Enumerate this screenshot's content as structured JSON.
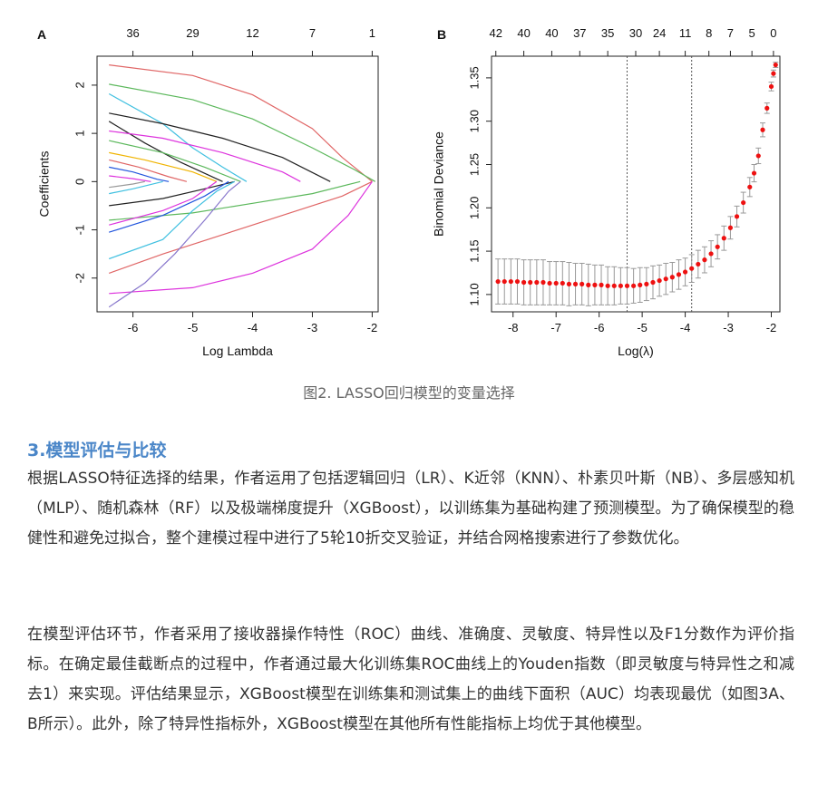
{
  "caption": "图2. LASSO回归模型的变量选择",
  "section_title": "3.模型评估与比较",
  "paragraphs": [
    "根据LASSO特征选择的结果，作者运用了包括逻辑回归（LR）、K近邻（KNN）、朴素贝叶斯（NB）、多层感知机（MLP）、随机森林（RF）以及极端梯度提升（XGBoost），以训练集为基础构建了预测模型。为了确保模型的稳健性和避免过拟合，整个建模过程中进行了5轮10折交叉验证，并结合网格搜索进行了参数优化。",
    "在模型评估环节，作者采用了接收器操作特性（ROC）曲线、准确度、灵敏度、特异性以及F1分数作为评价指标。在确定最佳截断点的过程中，作者通过最大化训练集ROC曲线上的Youden指数（即灵敏度与特异性之和减去1）来实现。评估结果显示，XGBoost模型在训练集和测试集上的曲线下面积（AUC）均表现最优（如图3A、B所示）。此外，除了特异性指标外，XGBoost模型在其他所有性能指标上均优于其他模型。"
  ],
  "chart_data": [
    {
      "panel": "A",
      "type": "line",
      "xlabel": "Log Lambda",
      "ylabel": "Coefficients",
      "xlim": [
        -6.6,
        -1.9
      ],
      "ylim": [
        -2.7,
        2.6
      ],
      "x_ticks": [
        -6,
        -5,
        -4,
        -3,
        -2
      ],
      "y_ticks": [
        -2,
        -1,
        0,
        1,
        2
      ],
      "top_axis_ticks": [
        {
          "x": -6,
          "label": "36"
        },
        {
          "x": -5,
          "label": "29"
        },
        {
          "x": -4,
          "label": "12"
        },
        {
          "x": -3,
          "label": "7"
        },
        {
          "x": -2,
          "label": "1"
        }
      ],
      "series": [
        {
          "color": "#e06666",
          "values": [
            [
              -6.4,
              2.42
            ],
            [
              -5.0,
              2.2
            ],
            [
              -4.0,
              1.8
            ],
            [
              -3.0,
              1.1
            ],
            [
              -2.5,
              0.5
            ],
            [
              -2.0,
              0
            ]
          ]
        },
        {
          "color": "#5cb85c",
          "values": [
            [
              -6.4,
              2.02
            ],
            [
              -5.0,
              1.7
            ],
            [
              -4.0,
              1.3
            ],
            [
              -3.0,
              0.7
            ],
            [
              -2.3,
              0.25
            ],
            [
              -1.95,
              0
            ]
          ]
        },
        {
          "color": "#40c0e0",
          "values": [
            [
              -6.4,
              1.82
            ],
            [
              -5.5,
              1.2
            ],
            [
              -5.0,
              0.7
            ],
            [
              -4.5,
              0.3
            ],
            [
              -4.1,
              0
            ]
          ]
        },
        {
          "color": "#222222",
          "values": [
            [
              -6.4,
              1.42
            ],
            [
              -5.5,
              1.2
            ],
            [
              -4.5,
              0.9
            ],
            [
              -3.5,
              0.5
            ],
            [
              -2.7,
              0
            ]
          ]
        },
        {
          "color": "#222222",
          "values": [
            [
              -6.4,
              1.25
            ],
            [
              -5.8,
              0.8
            ],
            [
              -5.2,
              0.4
            ],
            [
              -4.5,
              0
            ]
          ]
        },
        {
          "color": "#dd33dd",
          "values": [
            [
              -6.4,
              1.05
            ],
            [
              -5.5,
              0.9
            ],
            [
              -4.5,
              0.6
            ],
            [
              -3.5,
              0.2
            ],
            [
              -3.2,
              0
            ]
          ]
        },
        {
          "color": "#5cb85c",
          "values": [
            [
              -6.4,
              0.85
            ],
            [
              -5.5,
              0.6
            ],
            [
              -4.8,
              0.3
            ],
            [
              -4.2,
              0
            ]
          ]
        },
        {
          "color": "#f0b400",
          "values": [
            [
              -6.4,
              0.6
            ],
            [
              -5.8,
              0.45
            ],
            [
              -5.0,
              0.2
            ],
            [
              -4.6,
              0
            ]
          ]
        },
        {
          "color": "#e06666",
          "values": [
            [
              -6.4,
              0.45
            ],
            [
              -5.9,
              0.3
            ],
            [
              -5.4,
              0.1
            ],
            [
              -5.1,
              0
            ]
          ]
        },
        {
          "color": "#2255dd",
          "values": [
            [
              -6.4,
              0.3
            ],
            [
              -6.0,
              0.2
            ],
            [
              -5.6,
              0.05
            ],
            [
              -5.4,
              0
            ]
          ]
        },
        {
          "color": "#dd33dd",
          "values": [
            [
              -6.4,
              0.12
            ],
            [
              -6.0,
              0.06
            ],
            [
              -5.7,
              0
            ]
          ]
        },
        {
          "color": "#999999",
          "values": [
            [
              -6.4,
              -0.12
            ],
            [
              -6.0,
              -0.05
            ],
            [
              -5.8,
              0
            ]
          ]
        },
        {
          "color": "#40c0e0",
          "values": [
            [
              -6.4,
              -0.25
            ],
            [
              -6.0,
              -0.15
            ],
            [
              -5.5,
              0
            ]
          ]
        },
        {
          "color": "#222222",
          "values": [
            [
              -6.4,
              -0.5
            ],
            [
              -5.5,
              -0.35
            ],
            [
              -4.8,
              -0.15
            ],
            [
              -4.3,
              0
            ]
          ]
        },
        {
          "color": "#5cb85c",
          "values": [
            [
              -6.4,
              -0.8
            ],
            [
              -5.0,
              -0.65
            ],
            [
              -4.0,
              -0.45
            ],
            [
              -3.0,
              -0.25
            ],
            [
              -2.2,
              0
            ]
          ]
        },
        {
          "color": "#dd33dd",
          "values": [
            [
              -6.4,
              -0.9
            ],
            [
              -5.5,
              -0.6
            ],
            [
              -5.0,
              -0.35
            ],
            [
              -4.6,
              0
            ]
          ]
        },
        {
          "color": "#2255dd",
          "values": [
            [
              -6.4,
              -1.05
            ],
            [
              -5.5,
              -0.7
            ],
            [
              -4.8,
              -0.3
            ],
            [
              -4.4,
              0
            ]
          ]
        },
        {
          "color": "#40c0e0",
          "values": [
            [
              -6.4,
              -1.6
            ],
            [
              -5.5,
              -1.2
            ],
            [
              -5.0,
              -0.6
            ],
            [
              -4.6,
              -0.2
            ],
            [
              -4.3,
              0
            ]
          ]
        },
        {
          "color": "#e06666",
          "values": [
            [
              -6.4,
              -1.9
            ],
            [
              -5.5,
              -1.5
            ],
            [
              -4.5,
              -1.1
            ],
            [
              -3.5,
              -0.7
            ],
            [
              -2.5,
              -0.3
            ],
            [
              -2.0,
              0
            ]
          ]
        },
        {
          "color": "#dd33dd",
          "values": [
            [
              -6.4,
              -2.32
            ],
            [
              -5.0,
              -2.2
            ],
            [
              -4.0,
              -1.9
            ],
            [
              -3.0,
              -1.4
            ],
            [
              -2.4,
              -0.7
            ],
            [
              -2.0,
              0
            ]
          ]
        },
        {
          "color": "#8877cc",
          "values": [
            [
              -6.4,
              -2.6
            ],
            [
              -5.8,
              -2.1
            ],
            [
              -5.3,
              -1.5
            ],
            [
              -4.8,
              -0.8
            ],
            [
              -4.4,
              -0.2
            ],
            [
              -4.2,
              0
            ]
          ]
        }
      ]
    },
    {
      "panel": "B",
      "type": "scatter",
      "xlabel": "Log(λ)",
      "ylabel": "Binomial Deviance",
      "xlim": [
        -8.5,
        -1.8
      ],
      "ylim": [
        1.08,
        1.375
      ],
      "x_ticks": [
        -8,
        -7,
        -6,
        -5,
        -4,
        -3,
        -2
      ],
      "y_ticks": [
        1.1,
        1.15,
        1.2,
        1.25,
        1.3,
        1.35
      ],
      "y_tick_labels": [
        "1.10",
        "1.15",
        "1.20",
        "1.25",
        "1.30",
        "1.35"
      ],
      "top_axis_ticks": [
        {
          "x": -8.4,
          "label": "42"
        },
        {
          "x": -7.75,
          "label": "40"
        },
        {
          "x": -7.1,
          "label": "40"
        },
        {
          "x": -6.45,
          "label": "37"
        },
        {
          "x": -5.8,
          "label": "35"
        },
        {
          "x": -5.15,
          "label": "30"
        },
        {
          "x": -4.6,
          "label": "24"
        },
        {
          "x": -4.0,
          "label": "11"
        },
        {
          "x": -3.45,
          "label": "8"
        },
        {
          "x": -2.95,
          "label": "7"
        },
        {
          "x": -2.45,
          "label": "5"
        },
        {
          "x": -1.95,
          "label": "0"
        }
      ],
      "lambda_min": -5.35,
      "lambda_1se": -3.85,
      "points": [
        [
          -8.35,
          1.115,
          0.026
        ],
        [
          -8.2,
          1.115,
          0.026
        ],
        [
          -8.05,
          1.115,
          0.026
        ],
        [
          -7.9,
          1.115,
          0.026
        ],
        [
          -7.75,
          1.114,
          0.026
        ],
        [
          -7.6,
          1.114,
          0.026
        ],
        [
          -7.45,
          1.114,
          0.026
        ],
        [
          -7.3,
          1.114,
          0.026
        ],
        [
          -7.15,
          1.113,
          0.025
        ],
        [
          -7.0,
          1.113,
          0.025
        ],
        [
          -6.85,
          1.113,
          0.025
        ],
        [
          -6.7,
          1.112,
          0.025
        ],
        [
          -6.55,
          1.112,
          0.024
        ],
        [
          -6.4,
          1.112,
          0.024
        ],
        [
          -6.25,
          1.111,
          0.024
        ],
        [
          -6.1,
          1.111,
          0.023
        ],
        [
          -5.95,
          1.111,
          0.023
        ],
        [
          -5.8,
          1.11,
          0.022
        ],
        [
          -5.65,
          1.11,
          0.022
        ],
        [
          -5.5,
          1.11,
          0.021
        ],
        [
          -5.35,
          1.11,
          0.021
        ],
        [
          -5.2,
          1.11,
          0.02
        ],
        [
          -5.05,
          1.111,
          0.02
        ],
        [
          -4.9,
          1.112,
          0.019
        ],
        [
          -4.75,
          1.114,
          0.019
        ],
        [
          -4.6,
          1.116,
          0.018
        ],
        [
          -4.45,
          1.118,
          0.018
        ],
        [
          -4.3,
          1.12,
          0.017
        ],
        [
          -4.15,
          1.123,
          0.017
        ],
        [
          -4.0,
          1.126,
          0.016
        ],
        [
          -3.85,
          1.13,
          0.016
        ],
        [
          -3.7,
          1.135,
          0.016
        ],
        [
          -3.55,
          1.14,
          0.015
        ],
        [
          -3.4,
          1.147,
          0.015
        ],
        [
          -3.25,
          1.155,
          0.014
        ],
        [
          -3.1,
          1.165,
          0.014
        ],
        [
          -2.95,
          1.177,
          0.013
        ],
        [
          -2.8,
          1.19,
          0.012
        ],
        [
          -2.65,
          1.206,
          0.012
        ],
        [
          -2.5,
          1.224,
          0.011
        ],
        [
          -2.4,
          1.24,
          0.01
        ],
        [
          -2.3,
          1.26,
          0.009
        ],
        [
          -2.2,
          1.29,
          0.008
        ],
        [
          -2.1,
          1.315,
          0.006
        ],
        [
          -2.0,
          1.34,
          0.005
        ],
        [
          -1.95,
          1.355,
          0.004
        ],
        [
          -1.9,
          1.365,
          0.003
        ]
      ]
    }
  ]
}
